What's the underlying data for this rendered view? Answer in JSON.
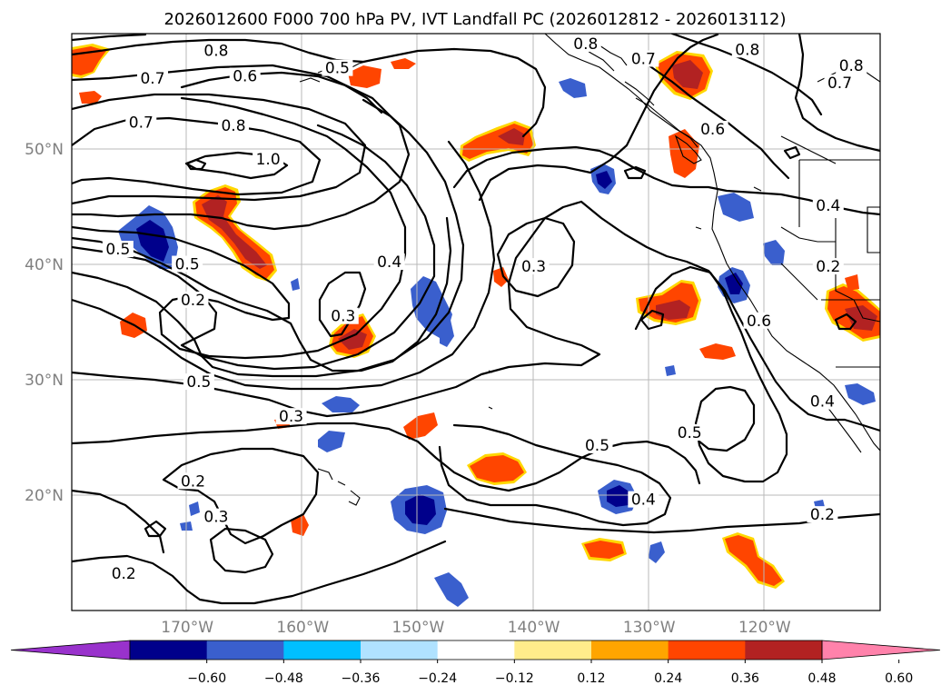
{
  "chart_data": {
    "type": "map-contour",
    "title": "2026012600 F000 700 hPa PV, IVT Landfall PC (2026012812 - 2026013112)",
    "x_range_deg": [
      -180,
      -110
    ],
    "y_range_deg": [
      10,
      60
    ],
    "lat_ticks": [
      {
        "value": 50,
        "label": "50°N"
      },
      {
        "value": 40,
        "label": "40°N"
      },
      {
        "value": 30,
        "label": "30°N"
      },
      {
        "value": 20,
        "label": "20°N"
      }
    ],
    "lon_ticks": [
      {
        "value": -170,
        "label": "170°W"
      },
      {
        "value": -160,
        "label": "160°W"
      },
      {
        "value": -150,
        "label": "150°W"
      },
      {
        "value": -140,
        "label": "140°W"
      },
      {
        "value": -130,
        "label": "130°W"
      },
      {
        "value": -120,
        "label": "120°W"
      }
    ],
    "gridlines": true,
    "colorbar": {
      "orientation": "horizontal",
      "extend": "both",
      "ticks": [
        "−0.60",
        "−0.48",
        "−0.36",
        "−0.24",
        "−0.12",
        "0.12",
        "0.24",
        "0.36",
        "0.48",
        "0.60"
      ],
      "colors": [
        "#9932cc",
        "#00008b",
        "#3a5fcd",
        "#00bfff",
        "#b0e2ff",
        "#ffffff",
        "#ffec8b",
        "#ffa500",
        "#ff4500",
        "#b22222",
        "#ff82ab"
      ]
    },
    "pv_contour_labels": [
      {
        "text": "0.8",
        "lon": -167.5,
        "lat": 58.3
      },
      {
        "text": "0.7",
        "lon": -173,
        "lat": 55.9
      },
      {
        "text": "0.6",
        "lon": -165,
        "lat": 56.1
      },
      {
        "text": "0.5",
        "lon": -157,
        "lat": 56.8
      },
      {
        "text": "0.7",
        "lon": -174,
        "lat": 52.1
      },
      {
        "text": "0.8",
        "lon": -166,
        "lat": 51.8
      },
      {
        "text": "1.0",
        "lon": -163,
        "lat": 48.9
      },
      {
        "text": "0.5",
        "lon": -176,
        "lat": 41.1
      },
      {
        "text": "0.5",
        "lon": -170,
        "lat": 39.8
      },
      {
        "text": "0.2",
        "lon": -169.5,
        "lat": 36.7
      },
      {
        "text": "0.4",
        "lon": -152.5,
        "lat": 40
      },
      {
        "text": "0.3",
        "lon": -156.5,
        "lat": 35.3
      },
      {
        "text": "0.3",
        "lon": -140,
        "lat": 39.6
      },
      {
        "text": "0.5",
        "lon": -169,
        "lat": 29.6
      },
      {
        "text": "0.3",
        "lon": -161,
        "lat": 26.6
      },
      {
        "text": "0.2",
        "lon": -169.5,
        "lat": 21
      },
      {
        "text": "0.3",
        "lon": -167.5,
        "lat": 17.9
      },
      {
        "text": "0.2",
        "lon": -175.5,
        "lat": 13
      },
      {
        "text": "0.5",
        "lon": -134.5,
        "lat": 24.1
      },
      {
        "text": "0.4",
        "lon": -130.5,
        "lat": 19.4
      },
      {
        "text": "0.5",
        "lon": -126.5,
        "lat": 25.2
      },
      {
        "text": "0.2",
        "lon": -115,
        "lat": 18.1
      },
      {
        "text": "0.4",
        "lon": -115,
        "lat": 27.9
      },
      {
        "text": "0.6",
        "lon": -120.5,
        "lat": 34.9
      },
      {
        "text": "0.2",
        "lon": -114.5,
        "lat": 39.6
      },
      {
        "text": "0.4",
        "lon": -114.5,
        "lat": 44.9
      },
      {
        "text": "0.6",
        "lon": -124.5,
        "lat": 51.5
      },
      {
        "text": "0.7",
        "lon": -113.5,
        "lat": 55.5
      },
      {
        "text": "0.8",
        "lon": -112.5,
        "lat": 57
      },
      {
        "text": "0.8",
        "lon": -121.5,
        "lat": 58.4
      },
      {
        "text": "0.7",
        "lon": -130.5,
        "lat": 57.6
      },
      {
        "text": "0.8",
        "lon": -135.5,
        "lat": 58.9
      }
    ],
    "ivt_pc_anomalies": [
      {
        "sign": "positive",
        "lon": -165.5,
        "lat": 44.5,
        "peak": 0.5
      },
      {
        "sign": "positive",
        "lon": -143,
        "lat": 51.0,
        "peak": 0.46
      },
      {
        "sign": "positive",
        "lon": -155.5,
        "lat": 34.2,
        "peak": 0.46
      },
      {
        "sign": "positive",
        "lon": -178,
        "lat": 57.3,
        "peak": 0.38
      },
      {
        "sign": "positive",
        "lon": -122.5,
        "lat": 56.6,
        "peak": 0.5
      },
      {
        "sign": "positive",
        "lon": -127.5,
        "lat": 36.6,
        "peak": 0.48
      },
      {
        "sign": "positive",
        "lon": -112.5,
        "lat": 35.9,
        "peak": 0.5
      },
      {
        "sign": "positive",
        "lon": -139.5,
        "lat": 21.8,
        "peak": 0.4
      },
      {
        "sign": "positive",
        "lon": -121,
        "lat": 12.4,
        "peak": 0.4
      },
      {
        "sign": "positive",
        "lon": -134.5,
        "lat": 13.8,
        "peak": 0.36
      },
      {
        "sign": "negative",
        "lon": -172.5,
        "lat": 42.5,
        "peak": -0.52
      },
      {
        "sign": "negative",
        "lon": -151,
        "lat": 37.4,
        "peak": -0.42
      },
      {
        "sign": "negative",
        "lon": -150,
        "lat": 18.8,
        "peak": -0.56
      },
      {
        "sign": "negative",
        "lon": -132,
        "lat": 20.2,
        "peak": -0.56
      },
      {
        "sign": "negative",
        "lon": -122.5,
        "lat": 38.6,
        "peak": -0.52
      },
      {
        "sign": "negative",
        "lon": -136,
        "lat": 47.6,
        "peak": -0.5
      },
      {
        "sign": "negative",
        "lon": -159,
        "lat": 24.0,
        "peak": -0.32
      }
    ]
  }
}
